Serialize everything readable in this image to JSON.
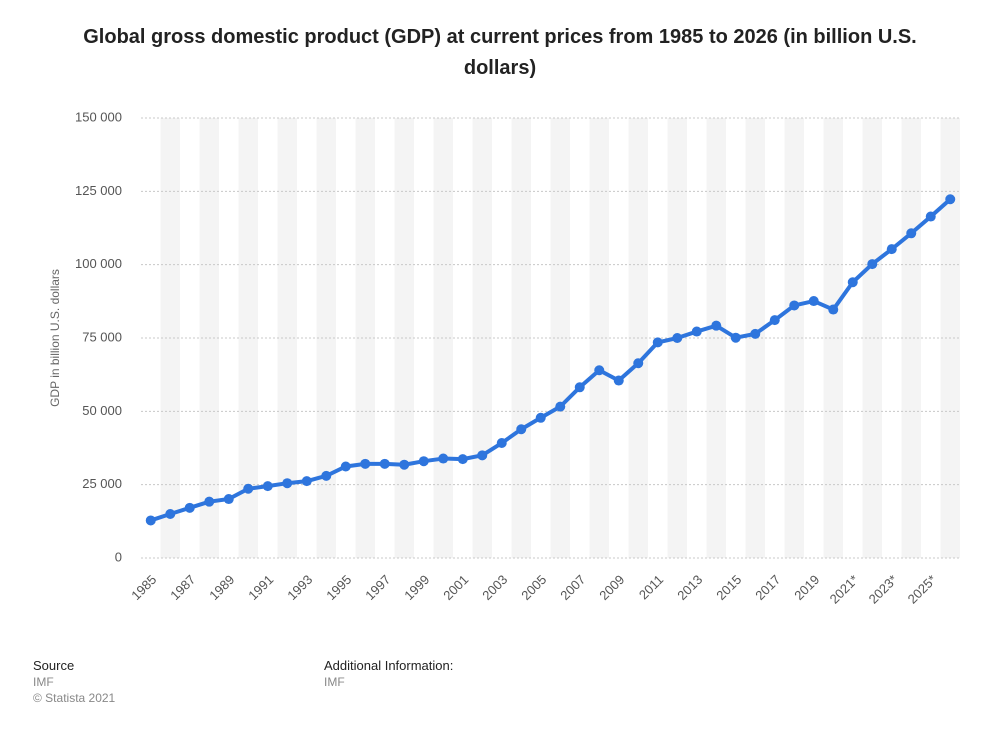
{
  "chart_data": {
    "type": "line",
    "title": "Global gross domestic product (GDP) at current prices from 1985 to 2026 (in billion U.S. dollars)",
    "y_label": "GDP in billion U.S. dollars",
    "categories": [
      "1985",
      null,
      "1987",
      null,
      "1989",
      null,
      "1991",
      null,
      "1993",
      null,
      "1995",
      null,
      "1997",
      null,
      "1999",
      null,
      "2001",
      null,
      "2003",
      null,
      "2005",
      null,
      "2007",
      null,
      "2009",
      null,
      "2011",
      null,
      "2013",
      null,
      "2015",
      null,
      "2017",
      null,
      "2019",
      null,
      "2021*",
      null,
      "2023*",
      null,
      "2025*",
      null
    ],
    "values": [
      12800,
      15000,
      17100,
      19200,
      20100,
      23600,
      24500,
      25500,
      26200,
      28000,
      31200,
      32100,
      32100,
      31800,
      33000,
      33900,
      33700,
      35000,
      39200,
      43900,
      47800,
      51600,
      58200,
      64000,
      60500,
      66400,
      73500,
      75000,
      77200,
      79200,
      75100,
      76400,
      81100,
      86100,
      87600,
      84700,
      94000,
      100200,
      105300,
      110700,
      116400,
      122300
    ],
    "color": "#2e75dd",
    "ylim": [
      0,
      150000
    ],
    "yticks": [
      0,
      {
        "value": 25000,
        "label": "25 000"
      },
      {
        "value": 50000,
        "label": "50 000"
      },
      {
        "value": 75000,
        "label": "75 000"
      },
      {
        "value": 100000,
        "label": "100 000"
      },
      {
        "value": 125000,
        "label": "125 000"
      },
      {
        "value": 150000,
        "label": "150 000"
      }
    ],
    "grid": true
  },
  "footer": {
    "source_heading": "Source",
    "source": "IMF",
    "copyright": "© Statista 2021",
    "info_heading": "Additional Information:",
    "info": "IMF"
  }
}
